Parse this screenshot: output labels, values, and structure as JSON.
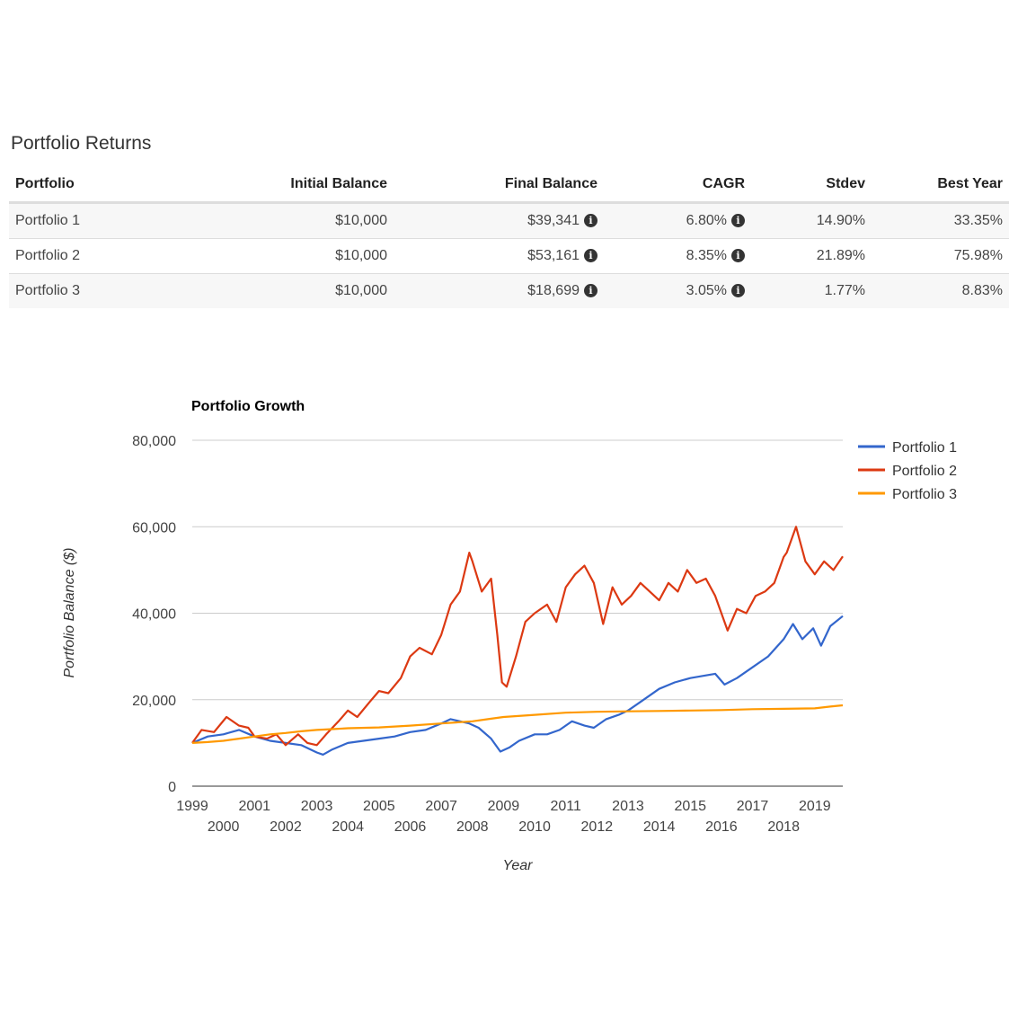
{
  "page_title": "Portfolio Returns",
  "table": {
    "headers": [
      "Portfolio",
      "Initial Balance",
      "Final Balance",
      "CAGR",
      "Stdev",
      "Best Year"
    ],
    "rows": [
      {
        "portfolio": "Portfolio 1",
        "initial": "$10,000",
        "final": "$39,341",
        "cagr": "6.80%",
        "stdev": "14.90%",
        "best": "33.35%"
      },
      {
        "portfolio": "Portfolio 2",
        "initial": "$10,000",
        "final": "$53,161",
        "cagr": "8.35%",
        "stdev": "21.89%",
        "best": "75.98%"
      },
      {
        "portfolio": "Portfolio 3",
        "initial": "$10,000",
        "final": "$18,699",
        "cagr": "3.05%",
        "stdev": "1.77%",
        "best": "8.83%"
      }
    ],
    "info_glyph": "i"
  },
  "chart_data": {
    "type": "line",
    "title": "Portfolio Growth",
    "xlabel": "Year",
    "ylabel": "Portfolio Balance ($)",
    "xlim": [
      1999,
      2019.9
    ],
    "ylim": [
      0,
      80000
    ],
    "yticks": [
      0,
      20000,
      40000,
      60000,
      80000
    ],
    "ytick_labels": [
      "0",
      "20,000",
      "40,000",
      "60,000",
      "80,000"
    ],
    "xticks": [
      1999,
      2000,
      2001,
      2002,
      2003,
      2004,
      2005,
      2006,
      2007,
      2008,
      2009,
      2010,
      2011,
      2012,
      2013,
      2014,
      2015,
      2016,
      2017,
      2018,
      2019
    ],
    "xtick_labels": [
      "1999",
      "2000",
      "2001",
      "2002",
      "2003",
      "2004",
      "2005",
      "2006",
      "2007",
      "2008",
      "2009",
      "2010",
      "2011",
      "2012",
      "2013",
      "2014",
      "2015",
      "2016",
      "2017",
      "2018",
      "2019"
    ],
    "legend_position": "right",
    "series": [
      {
        "name": "Portfolio 1",
        "color": "#3366cc",
        "x": [
          1999.0,
          1999.5,
          2000.0,
          2000.5,
          2001.0,
          2001.5,
          2002.0,
          2002.5,
          2003.0,
          2003.2,
          2003.5,
          2004.0,
          2004.5,
          2005.0,
          2005.5,
          2006.0,
          2006.5,
          2007.0,
          2007.3,
          2007.6,
          2007.9,
          2008.2,
          2008.6,
          2008.9,
          2009.2,
          2009.5,
          2010.0,
          2010.4,
          2010.8,
          2011.2,
          2011.6,
          2011.9,
          2012.3,
          2012.7,
          2013.0,
          2013.5,
          2014.0,
          2014.5,
          2015.0,
          2015.4,
          2015.8,
          2016.1,
          2016.5,
          2017.0,
          2017.5,
          2018.0,
          2018.3,
          2018.6,
          2018.95,
          2019.2,
          2019.5,
          2019.9
        ],
        "y": [
          10000,
          11500,
          12000,
          13000,
          11500,
          10500,
          10000,
          9500,
          7800,
          7300,
          8500,
          10000,
          10500,
          11000,
          11500,
          12500,
          13000,
          14500,
          15500,
          15000,
          14500,
          13500,
          11000,
          8000,
          9000,
          10500,
          12000,
          12000,
          13000,
          15000,
          14000,
          13500,
          15500,
          16500,
          17500,
          20000,
          22500,
          24000,
          25000,
          25500,
          26000,
          23500,
          25000,
          27500,
          30000,
          34000,
          37500,
          34000,
          36500,
          32500,
          37000,
          39341
        ]
      },
      {
        "name": "Portfolio 2",
        "color": "#dc3912",
        "x": [
          1999.0,
          1999.3,
          1999.7,
          2000.1,
          2000.5,
          2000.8,
          2001.0,
          2001.4,
          2001.7,
          2002.0,
          2002.4,
          2002.7,
          2003.0,
          2003.3,
          2003.7,
          2004.0,
          2004.3,
          2004.7,
          2005.0,
          2005.3,
          2005.7,
          2006.0,
          2006.3,
          2006.7,
          2007.0,
          2007.3,
          2007.6,
          2007.9,
          2008.0,
          2008.3,
          2008.6,
          2008.8,
          2008.95,
          2009.1,
          2009.4,
          2009.7,
          2010.0,
          2010.4,
          2010.7,
          2011.0,
          2011.3,
          2011.6,
          2011.9,
          2012.2,
          2012.5,
          2012.8,
          2013.1,
          2013.4,
          2013.7,
          2014.0,
          2014.3,
          2014.6,
          2014.9,
          2015.2,
          2015.5,
          2015.8,
          2016.0,
          2016.2,
          2016.5,
          2016.8,
          2017.1,
          2017.4,
          2017.7,
          2018.0,
          2018.1,
          2018.4,
          2018.7,
          2019.0,
          2019.3,
          2019.6,
          2019.9
        ],
        "y": [
          10000,
          13000,
          12500,
          16000,
          14000,
          13500,
          11500,
          11000,
          12000,
          9500,
          12000,
          10000,
          9500,
          12000,
          15000,
          17500,
          16000,
          19500,
          22000,
          21500,
          25000,
          30000,
          32000,
          30500,
          35000,
          42000,
          45000,
          54000,
          52000,
          45000,
          48000,
          35000,
          24000,
          23000,
          30000,
          38000,
          40000,
          42000,
          38000,
          46000,
          49000,
          51000,
          47000,
          37500,
          46000,
          42000,
          44000,
          47000,
          45000,
          43000,
          47000,
          45000,
          50000,
          47000,
          48000,
          44000,
          40000,
          36000,
          41000,
          40000,
          44000,
          45000,
          47000,
          53000,
          54000,
          60000,
          52000,
          49000,
          52000,
          50000,
          53161
        ]
      },
      {
        "name": "Portfolio 3",
        "color": "#ff9900",
        "x": [
          1999.0,
          1999.5,
          2000.0,
          2000.5,
          2001.0,
          2001.5,
          2002.0,
          2002.5,
          2003.0,
          2003.5,
          2004.0,
          2005.0,
          2006.0,
          2007.0,
          2008.0,
          2008.5,
          2009.0,
          2010.0,
          2011.0,
          2012.0,
          2013.0,
          2014.0,
          2015.0,
          2016.0,
          2017.0,
          2018.0,
          2019.0,
          2019.5,
          2019.9
        ],
        "y": [
          10000,
          10200,
          10500,
          11000,
          11500,
          12000,
          12300,
          12700,
          13000,
          13200,
          13400,
          13600,
          14000,
          14500,
          15000,
          15500,
          16000,
          16500,
          17000,
          17200,
          17300,
          17400,
          17500,
          17600,
          17800,
          17900,
          18000,
          18400,
          18699
        ]
      }
    ]
  }
}
